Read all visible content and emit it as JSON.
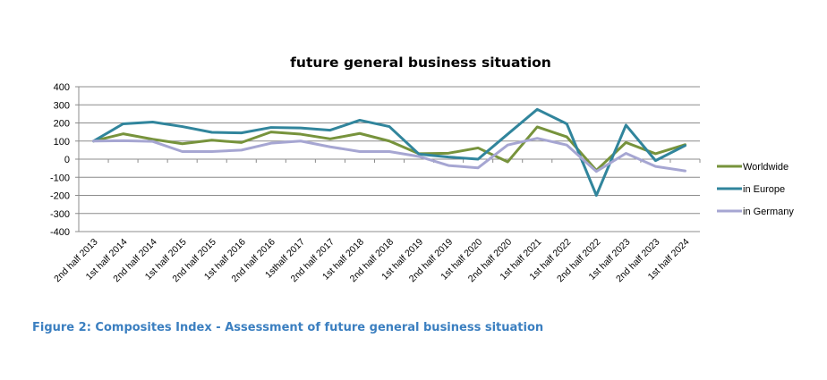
{
  "caption": "Figure 2: Composites Index - Assessment of future general business situation",
  "chart_data": {
    "type": "line",
    "title": "future general business situation",
    "xlabel": "",
    "ylabel": "",
    "ylim": [
      -400,
      400
    ],
    "yticks": [
      400,
      300,
      200,
      100,
      0,
      -100,
      -200,
      -300,
      -400
    ],
    "grid": true,
    "legend_position": "right",
    "categories": [
      "2nd  half 2013",
      "1st half 2014",
      "2nd half 2014",
      "1st half 2015",
      "2nd half 2015",
      "1st half 2016",
      "2nd half 2016",
      "1sthalf 2017",
      "2nd half 2017",
      "1st half 2018",
      "2nd half 2018",
      "1st half 2019",
      "2nd half 2019",
      "1st half 2020",
      "2nd half 2020",
      "1st half 2021",
      "1st half 2022",
      "2nd half 2022",
      "1st half 2023",
      "2nd half 2023",
      "1st half 2024"
    ],
    "series": [
      {
        "name": "Worldwide",
        "color": "#77933c",
        "values": [
          100,
          140,
          110,
          85,
          105,
          92,
          150,
          138,
          112,
          142,
          100,
          30,
          33,
          62,
          -15,
          178,
          123,
          -62,
          92,
          30,
          80
        ]
      },
      {
        "name": "in Europe",
        "color": "#31859c",
        "values": [
          100,
          195,
          205,
          180,
          148,
          145,
          175,
          172,
          160,
          215,
          180,
          28,
          12,
          0,
          138,
          275,
          195,
          -200,
          188,
          -8,
          75
        ]
      },
      {
        "name": "in Germany",
        "color": "#a6a6d2",
        "values": [
          100,
          102,
          98,
          42,
          42,
          50,
          88,
          100,
          68,
          42,
          42,
          15,
          -35,
          -48,
          78,
          115,
          78,
          -68,
          32,
          -40,
          -65
        ]
      }
    ]
  }
}
